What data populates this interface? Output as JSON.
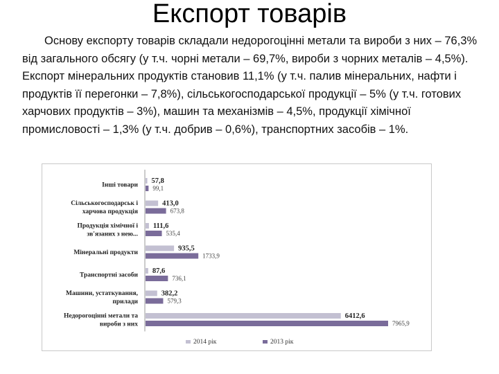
{
  "slide": {
    "title": "Експорт товарів",
    "body": "Основу експорту товарів складали недорогоцінні метали та вироби з них – 76,3% від загального обсягу (у т.ч. чорні метали – 69,7%, вироби з чорних металів – 4,5%). Експорт мінеральних продуктів становив 11,1% (у т.ч. палив мінеральних, нафти і продуктів її перегонки – 7,8%), сільськогосподарської продукції – 5% (у т.ч. готових харчових продуктів – 3%), машин та механізмів – 4,5%, продукції хімічної промисловості – 1,3% (у т.ч. добрив – 0,6%), транспортних засобів – 1%."
  },
  "chart_data": {
    "type": "bar",
    "orientation": "horizontal",
    "categories": [
      [
        "Інші товари"
      ],
      [
        "Сільськогосподарськ і",
        "харчова продукція"
      ],
      [
        "Продукція хімічної і",
        "зв'язаних з нею..."
      ],
      [
        "Мінеральні продукти"
      ],
      [
        "Транспортні засоби"
      ],
      [
        "Машини, устаткування,",
        "прилади"
      ],
      [
        "Недорогоцінні метали та",
        "вироби з них"
      ]
    ],
    "series": [
      {
        "name": "2014 рік",
        "color": "#c3c0d2",
        "values": [
          57.8,
          413.0,
          111.6,
          935.5,
          87.6,
          382.2,
          6412.6
        ],
        "labels": [
          "57,8",
          "413,0",
          "111,6",
          "935,5",
          "87,6",
          "382,2",
          "6412,6"
        ]
      },
      {
        "name": "2013 рік",
        "color": "#7a6c9a",
        "values": [
          99.1,
          673.8,
          535.4,
          1733.9,
          736.1,
          579.3,
          7965.9
        ],
        "labels": [
          "99,1",
          "673,8",
          "535,4",
          "1733,9",
          "736,1",
          "579,3",
          "7965,9"
        ]
      }
    ],
    "legend_position": "bottom",
    "grid": false
  }
}
